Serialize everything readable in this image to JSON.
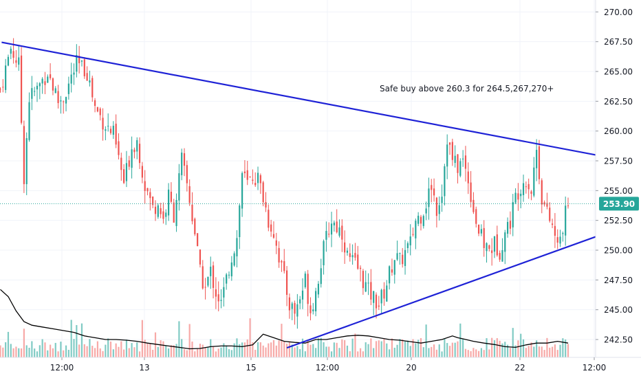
{
  "colors": {
    "up": "#26a69a",
    "down": "#ef5350",
    "volume_up": "#80cbc4",
    "volume_down": "#f7a9a7",
    "trendline": "#1e22d6",
    "volume_ma": "#000000",
    "price_line": "#26a69a",
    "badge_bg": "#26a69a",
    "grid": "#f0f3fa",
    "axis_border": "#e0e3eb"
  },
  "chart_data": {
    "type": "candlestick",
    "x_tick_labels": [
      "12:00",
      "13",
      "15",
      "12:00",
      "20",
      "22",
      "12:00"
    ],
    "y_tick_labels": [
      "270.00",
      "267.50",
      "265.00",
      "262.50",
      "260.00",
      "257.50",
      "255.00",
      "252.50",
      "250.00",
      "247.50",
      "245.00",
      "242.50"
    ],
    "ylim": [
      241.0,
      271.0
    ],
    "current_price": "253.90",
    "annotation": "Safe buy above 260.3 for 264.5,267,270+",
    "trendlines": [
      {
        "name": "resistance",
        "points": [
          [
            0.5,
            267.45
          ],
          [
            220,
            258.3
          ]
        ]
      },
      {
        "name": "support",
        "points": [
          [
            109,
            241.8
          ],
          [
            220,
            250.55
          ]
        ]
      }
    ],
    "price_path": [
      [
        0,
        263.5
      ],
      [
        4,
        267.0
      ],
      [
        7,
        265.5
      ],
      [
        9,
        256.2
      ],
      [
        11,
        262.8
      ],
      [
        14,
        263.5
      ],
      [
        18,
        265.0
      ],
      [
        22,
        262.5
      ],
      [
        24,
        262.8
      ],
      [
        29,
        265.6
      ],
      [
        33,
        265.0
      ],
      [
        36,
        262.0
      ],
      [
        40,
        260.5
      ],
      [
        43,
        259.7
      ],
      [
        47,
        255.6
      ],
      [
        50,
        258.7
      ],
      [
        52,
        259.2
      ],
      [
        55,
        255.5
      ],
      [
        58,
        253.5
      ],
      [
        60,
        254.0
      ],
      [
        62,
        252.6
      ],
      [
        64,
        254.5
      ],
      [
        66,
        253.0
      ],
      [
        68,
        256.0
      ],
      [
        69,
        257.5
      ],
      [
        71,
        255.5
      ],
      [
        74,
        251.5
      ],
      [
        76,
        248.0
      ],
      [
        78,
        246.8
      ],
      [
        80,
        248.2
      ],
      [
        82,
        246.5
      ],
      [
        84,
        245.5
      ],
      [
        86,
        247.5
      ],
      [
        88,
        249.5
      ],
      [
        90,
        251.0
      ],
      [
        92,
        256.5
      ],
      [
        94,
        255.5
      ],
      [
        96,
        256.2
      ],
      [
        98,
        256.0
      ],
      [
        100,
        254.5
      ],
      [
        102,
        252.5
      ],
      [
        104,
        251.5
      ],
      [
        106,
        249.5
      ],
      [
        108,
        247.5
      ],
      [
        110,
        245.5
      ],
      [
        112,
        244.8
      ],
      [
        114,
        246.0
      ],
      [
        116,
        247.5
      ],
      [
        118,
        245.0
      ],
      [
        120,
        246.5
      ],
      [
        122,
        249.0
      ],
      [
        124,
        251.0
      ],
      [
        126,
        252.5
      ],
      [
        128,
        252.0
      ],
      [
        130,
        251.5
      ],
      [
        132,
        249.5
      ],
      [
        134,
        249.0
      ],
      [
        136,
        248.5
      ],
      [
        138,
        247.5
      ],
      [
        140,
        246.5
      ],
      [
        142,
        246.0
      ],
      [
        144,
        245.5
      ],
      [
        146,
        246.5
      ],
      [
        148,
        248.0
      ],
      [
        150,
        249.5
      ],
      [
        152,
        249.0
      ],
      [
        154,
        249.8
      ],
      [
        156,
        250.5
      ],
      [
        158,
        252.5
      ],
      [
        160,
        253.0
      ],
      [
        162,
        254.0
      ],
      [
        164,
        255.5
      ],
      [
        166,
        253.5
      ],
      [
        168,
        255.0
      ],
      [
        170,
        259.5
      ],
      [
        172,
        257.5
      ],
      [
        174,
        257.0
      ],
      [
        176,
        257.5
      ],
      [
        178,
        256.0
      ],
      [
        180,
        253.5
      ],
      [
        182,
        251.5
      ],
      [
        184,
        250.5
      ],
      [
        186,
        250.0
      ],
      [
        188,
        250.5
      ],
      [
        190,
        250.0
      ],
      [
        192,
        251.5
      ],
      [
        194,
        252.5
      ],
      [
        196,
        254.5
      ],
      [
        198,
        255.5
      ],
      [
        200,
        256.0
      ],
      [
        202,
        255.0
      ],
      [
        204,
        258.5
      ],
      [
        206,
        254.5
      ],
      [
        208,
        253.0
      ],
      [
        210,
        252.0
      ],
      [
        212,
        250.2
      ],
      [
        214,
        252.0
      ],
      [
        216,
        253.9
      ]
    ],
    "volume_ma_path": [
      [
        0,
        0.19
      ],
      [
        3,
        0.17
      ],
      [
        6,
        0.13
      ],
      [
        9,
        0.1
      ],
      [
        12,
        0.09
      ],
      [
        16,
        0.085
      ],
      [
        20,
        0.08
      ],
      [
        24,
        0.075
      ],
      [
        28,
        0.07
      ],
      [
        32,
        0.06
      ],
      [
        36,
        0.055
      ],
      [
        40,
        0.05
      ],
      [
        44,
        0.05
      ],
      [
        48,
        0.048
      ],
      [
        52,
        0.045
      ],
      [
        56,
        0.04
      ],
      [
        60,
        0.036
      ],
      [
        64,
        0.032
      ],
      [
        68,
        0.028
      ],
      [
        72,
        0.024
      ],
      [
        76,
        0.025
      ],
      [
        80,
        0.03
      ],
      [
        84,
        0.032
      ],
      [
        88,
        0.032
      ],
      [
        92,
        0.03
      ],
      [
        96,
        0.035
      ],
      [
        100,
        0.065
      ],
      [
        104,
        0.055
      ],
      [
        108,
        0.045
      ],
      [
        112,
        0.042
      ],
      [
        116,
        0.04
      ],
      [
        120,
        0.05
      ],
      [
        124,
        0.05
      ],
      [
        128,
        0.055
      ],
      [
        132,
        0.06
      ],
      [
        136,
        0.062
      ],
      [
        140,
        0.06
      ],
      [
        144,
        0.055
      ],
      [
        148,
        0.05
      ],
      [
        152,
        0.048
      ],
      [
        156,
        0.044
      ],
      [
        160,
        0.04
      ],
      [
        164,
        0.045
      ],
      [
        168,
        0.05
      ],
      [
        172,
        0.06
      ],
      [
        174,
        0.055
      ],
      [
        176,
        0.052
      ],
      [
        180,
        0.045
      ],
      [
        184,
        0.04
      ],
      [
        188,
        0.036
      ],
      [
        192,
        0.03
      ],
      [
        196,
        0.028
      ],
      [
        200,
        0.035
      ],
      [
        204,
        0.04
      ],
      [
        208,
        0.04
      ],
      [
        212,
        0.045
      ],
      [
        216,
        0.04
      ]
    ]
  }
}
